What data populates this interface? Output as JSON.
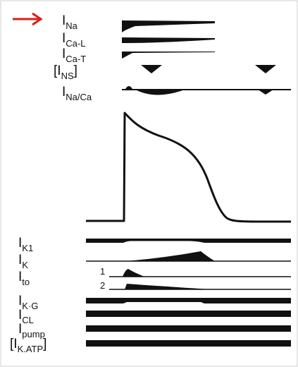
{
  "figure": {
    "colors": {
      "ink": "#111111",
      "pointer": "#d91e18",
      "frame": "#cfcfcf"
    },
    "pointer_icon": "red-arrow-icon",
    "inward_currents": [
      {
        "id": "ina",
        "main": "I",
        "sub": "Na"
      },
      {
        "id": "ical",
        "main": "I",
        "sub": "Ca-L"
      },
      {
        "id": "icat",
        "main": "I",
        "sub": "Ca-T"
      },
      {
        "id": "ins",
        "main": "I",
        "sub": "NS",
        "bracket_left": "[",
        "bracket_right": "]"
      },
      {
        "id": "inaca",
        "main": "I",
        "sub": "Na/Ca"
      }
    ],
    "outward_currents": [
      {
        "id": "ik1",
        "main": "I",
        "sub": "K1"
      },
      {
        "id": "ik",
        "main": "I",
        "sub": "K"
      },
      {
        "id": "ito",
        "main": "I",
        "sub": "to",
        "components": [
          "1",
          "2"
        ]
      },
      {
        "id": "ikg",
        "main": "I",
        "sub": "K·G"
      },
      {
        "id": "icl",
        "main": "I",
        "sub": "CL"
      },
      {
        "id": "ipump",
        "main": "I",
        "sub": "pump"
      },
      {
        "id": "ikatp",
        "main": "I",
        "sub": "K.ATP",
        "bracket_left": "[",
        "bracket_right": "]"
      }
    ]
  }
}
